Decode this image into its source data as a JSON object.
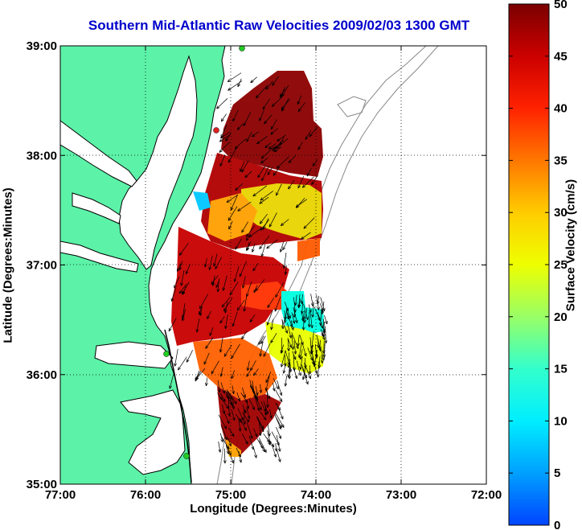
{
  "title": "Southern Mid-Atlantic Raw Velocities 2009/02/03 1300 GMT",
  "xlabel": "Longitude (Degrees:Minutes)",
  "ylabel": "Latitude (Degrees:Minutes)",
  "colorbar": {
    "label": "Surface Velocity (cm/s)",
    "ticks": [
      "0",
      "5",
      "10",
      "15",
      "20",
      "25",
      "30",
      "35",
      "40",
      "45",
      "50"
    ],
    "range": [
      0,
      50
    ]
  },
  "xticks": [
    "77:00",
    "76:00",
    "75:00",
    "74:00",
    "73:00",
    "72:00"
  ],
  "yticks": [
    "39:00",
    "38:00",
    "37:00",
    "36:00",
    "35:00"
  ],
  "colors": {
    "land": "#5cf2a8",
    "water": "#ffffff",
    "title": "#0000cc",
    "grid": "#000000",
    "bathymetry": "#888888",
    "station": "#22cc22",
    "station_offline": "#dd2222"
  },
  "map": {
    "lon_range": [
      -77.0,
      -72.0
    ],
    "lat_range": [
      35.0,
      39.0
    ],
    "grid": "dotted"
  }
}
